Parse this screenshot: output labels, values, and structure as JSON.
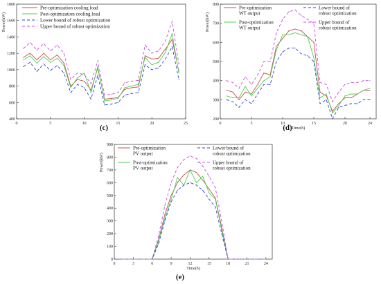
{
  "colors": {
    "pre": "#c0504d",
    "post": "#4fd04f",
    "lower": "#2a3fd6",
    "upper": "#c84ee0",
    "axis": "#333333"
  },
  "chart_data": [
    {
      "panel_label": "(c)",
      "type": "line",
      "ylabel": "Power(kW)",
      "xlabel": "",
      "xlim": [
        0,
        25
      ],
      "ylim": [
        400,
        1800
      ],
      "xticks": [
        0,
        5,
        10,
        15,
        20,
        25
      ],
      "yticks": [
        400,
        600,
        800,
        1000,
        1200,
        1400,
        1600,
        1800
      ],
      "legend": "top-left",
      "x": [
        1,
        2,
        3,
        4,
        5,
        6,
        7,
        8,
        9,
        10,
        11,
        12,
        13,
        14,
        15,
        16,
        17,
        18,
        19,
        20,
        21,
        22,
        23,
        24
      ],
      "series": [
        {
          "name": "Pre-optimization cooling load",
          "key": "pre",
          "dash": "",
          "values": [
            1150,
            1200,
            1120,
            1200,
            1120,
            1180,
            1080,
            800,
            880,
            860,
            750,
            1020,
            640,
            650,
            660,
            760,
            780,
            790,
            1170,
            1130,
            1140,
            1250,
            1370,
            980
          ]
        },
        {
          "name": "Post-optimization cooling load",
          "key": "post",
          "dash": "",
          "values": [
            1120,
            1170,
            1080,
            1160,
            1090,
            1140,
            1050,
            780,
            900,
            960,
            720,
            1040,
            620,
            630,
            650,
            780,
            800,
            820,
            1150,
            1060,
            1090,
            1210,
            1440,
            960
          ]
        },
        {
          "name": "Lower bound of robust optimization",
          "key": "lower",
          "dash": "4,3",
          "values": [
            1040,
            1090,
            980,
            1070,
            990,
            1050,
            960,
            720,
            820,
            780,
            640,
            930,
            570,
            580,
            600,
            690,
            710,
            720,
            1060,
            1000,
            1020,
            1130,
            1280,
            880
          ]
        },
        {
          "name": "Upper bound of robust optimization",
          "key": "upper",
          "dash": "4,3",
          "values": [
            1260,
            1330,
            1240,
            1320,
            1230,
            1300,
            1200,
            880,
            960,
            940,
            830,
            1110,
            690,
            700,
            720,
            840,
            860,
            870,
            1300,
            1200,
            1230,
            1350,
            1590,
            1070
          ]
        }
      ]
    },
    {
      "panel_label": "(d)",
      "type": "line",
      "ylabel": "Power(kW)",
      "xlabel": "Time(h)",
      "xlim": [
        0,
        25
      ],
      "ylim": [
        200,
        800
      ],
      "xticks": [
        0,
        5,
        10,
        15,
        20,
        24
      ],
      "yticks": [
        200,
        300,
        400,
        500,
        600,
        700,
        800
      ],
      "legend": "top",
      "x": [
        1,
        2,
        3,
        4,
        5,
        6,
        7,
        8,
        9,
        10,
        11,
        12,
        13,
        14,
        15,
        16,
        17,
        18,
        19,
        20,
        21,
        22,
        23,
        24
      ],
      "series": [
        {
          "name": "Pre-optimization WT output",
          "key": "pre",
          "dash": "",
          "values": [
            350,
            340,
            300,
            340,
            330,
            380,
            440,
            430,
            580,
            620,
            660,
            670,
            660,
            630,
            600,
            340,
            320,
            240,
            280,
            310,
            310,
            330,
            350,
            350
          ]
        },
        {
          "name": "Post-optimization WT output",
          "key": "post",
          "dash": "",
          "values": [
            320,
            310,
            310,
            370,
            320,
            360,
            400,
            420,
            560,
            640,
            640,
            650,
            640,
            630,
            520,
            310,
            330,
            230,
            270,
            320,
            330,
            330,
            350,
            360
          ]
        },
        {
          "name": "Lower bound of robust optimization",
          "key": "lower",
          "dash": "4,3",
          "values": [
            300,
            290,
            260,
            300,
            280,
            330,
            380,
            380,
            500,
            550,
            570,
            570,
            540,
            530,
            500,
            280,
            300,
            200,
            260,
            270,
            280,
            280,
            300,
            300
          ]
        },
        {
          "name": "Upper bound of robust optimization",
          "key": "upper",
          "dash": "4,3",
          "values": [
            400,
            390,
            360,
            420,
            380,
            430,
            500,
            500,
            650,
            720,
            760,
            770,
            740,
            720,
            700,
            390,
            380,
            290,
            340,
            380,
            390,
            390,
            400,
            400
          ]
        }
      ]
    },
    {
      "panel_label": "(e)",
      "type": "line",
      "ylabel": "Power(kW)",
      "xlabel": "Time(h)",
      "xlim": [
        0,
        25
      ],
      "ylim": [
        0,
        900
      ],
      "xticks": [
        0,
        3,
        6,
        9,
        12,
        15,
        18,
        21,
        24
      ],
      "yticks": [
        0,
        100,
        200,
        300,
        400,
        500,
        600,
        700,
        800,
        900
      ],
      "legend": "top",
      "x": [
        1,
        2,
        3,
        4,
        5,
        6,
        7,
        8,
        9,
        10,
        11,
        12,
        13,
        14,
        15,
        16,
        17,
        18,
        19,
        20,
        21,
        22,
        23,
        24
      ],
      "series": [
        {
          "name": "Pre-optimization PV output",
          "key": "pre",
          "dash": "",
          "values": [
            0,
            0,
            0,
            0,
            0,
            0,
            150,
            350,
            500,
            600,
            660,
            700,
            680,
            620,
            550,
            480,
            250,
            0,
            0,
            0,
            0,
            0,
            0,
            0
          ]
        },
        {
          "name": "Post-optimization PV output",
          "key": "post",
          "dash": "",
          "values": [
            0,
            0,
            0,
            0,
            0,
            0,
            140,
            320,
            470,
            640,
            580,
            700,
            600,
            650,
            520,
            470,
            230,
            0,
            0,
            0,
            0,
            0,
            0,
            0
          ]
        },
        {
          "name": "Lower bound of robust optimization",
          "key": "lower",
          "dash": "4,3",
          "values": [
            0,
            0,
            0,
            0,
            0,
            0,
            120,
            300,
            450,
            540,
            580,
            600,
            580,
            540,
            470,
            410,
            200,
            0,
            0,
            0,
            0,
            0,
            0,
            0
          ]
        },
        {
          "name": "Upper bound of robust optimization",
          "key": "upper",
          "dash": "4,3",
          "values": [
            0,
            0,
            0,
            0,
            0,
            0,
            180,
            420,
            600,
            720,
            780,
            810,
            790,
            730,
            650,
            560,
            300,
            0,
            0,
            0,
            0,
            0,
            0,
            0
          ]
        }
      ]
    }
  ],
  "legend_display": [
    {
      "entries": [
        {
          "key": "pre",
          "dash": "",
          "lines": [
            "Pre-optimization cooling load"
          ]
        },
        {
          "key": "post",
          "dash": "",
          "lines": [
            "Post-optimization cooling load"
          ]
        },
        {
          "key": "lower",
          "dash": "4,3",
          "lines": [
            "Lower bound of robust optimization"
          ]
        },
        {
          "key": "upper",
          "dash": "4,3",
          "lines": [
            "Upper bound of robust optimization"
          ]
        }
      ]
    },
    {
      "entries": [
        {
          "key": "pre",
          "dash": "",
          "lines": [
            "Pre-optimization",
            "WT output"
          ]
        },
        {
          "key": "lower",
          "dash": "4,3",
          "lines": [
            "Lower bound of",
            "robust optimization"
          ]
        },
        {
          "key": "post",
          "dash": "",
          "lines": [
            "Post-optimization",
            "WT output"
          ]
        },
        {
          "key": "upper",
          "dash": "4,3",
          "lines": [
            "Upper bound of",
            "robust optimization"
          ]
        }
      ]
    },
    {
      "entries": [
        {
          "key": "pre",
          "dash": "",
          "lines": [
            "Pre-optimization",
            "PV output"
          ]
        },
        {
          "key": "lower",
          "dash": "4,3",
          "lines": [
            "Lower bound of",
            "robust optimization"
          ]
        },
        {
          "key": "post",
          "dash": "",
          "lines": [
            "Post-optimization",
            "PV output"
          ]
        },
        {
          "key": "upper",
          "dash": "4,3",
          "lines": [
            "Upper bound of",
            "robust optimization"
          ]
        }
      ]
    }
  ]
}
